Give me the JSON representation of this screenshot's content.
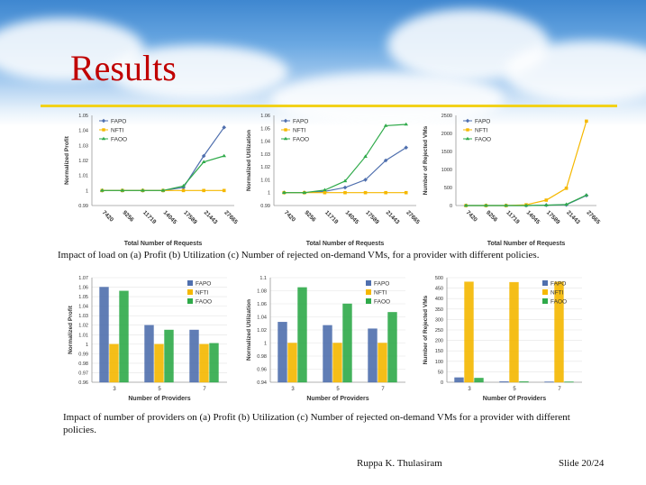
{
  "slide": {
    "title": "Results",
    "caption_top": "Impact of load on (a) Profit (b) Utilization (c) Number of rejected on-demand VMs, for a provider with different policies.",
    "caption_bottom": "Impact of number of providers on (a) Profit (b) Utilization (c) Number of rejected on-demand VMs for a provider with different policies.",
    "author": "Ruppa K. Thulasiram",
    "slide_number": "Slide 20/24",
    "colors": {
      "title": "#c00000",
      "accent": "#f2d21a",
      "fapo": "#4f6fae",
      "nfti": "#f5b800",
      "faoo": "#2faa4a"
    }
  },
  "chart_data": [
    {
      "type": "line",
      "xlabel": "Total Number of Requests",
      "ylabel": "Normalized Profit",
      "categories": [
        "7420",
        "9256",
        "11719",
        "14045",
        "17589",
        "21443",
        "27665"
      ],
      "yticks": [
        "0.99",
        "1",
        "1.01",
        "1.02",
        "1.03",
        "1.04",
        "1.05"
      ],
      "ylim": [
        0.99,
        1.05
      ],
      "legend": "top-left",
      "series": [
        {
          "name": "FAPO",
          "marker": "diamond",
          "values": [
            1,
            1,
            1,
            1,
            1.002,
            1.023,
            1.042
          ]
        },
        {
          "name": "NFTI",
          "marker": "square",
          "values": [
            1,
            1,
            1,
            1,
            1,
            1,
            1
          ]
        },
        {
          "name": "FAOO",
          "marker": "triangle",
          "values": [
            1,
            1,
            1,
            1,
            1.003,
            1.019,
            1.023
          ]
        }
      ]
    },
    {
      "type": "line",
      "xlabel": "Total Number of Requests",
      "ylabel": "Normalized Utilization",
      "categories": [
        "7420",
        "9256",
        "11719",
        "14045",
        "17589",
        "21443",
        "27665"
      ],
      "yticks": [
        "0.99",
        "1",
        "1.01",
        "1.02",
        "1.03",
        "1.04",
        "1.05",
        "1.06"
      ],
      "ylim": [
        0.99,
        1.06
      ],
      "legend": "top-left",
      "series": [
        {
          "name": "FAPO",
          "marker": "diamond",
          "values": [
            1,
            1,
            1.001,
            1.004,
            1.01,
            1.025,
            1.035
          ]
        },
        {
          "name": "NFTI",
          "marker": "square",
          "values": [
            1,
            1,
            1,
            1,
            1,
            1,
            1
          ]
        },
        {
          "name": "FAOO",
          "marker": "triangle",
          "values": [
            1,
            1,
            1.002,
            1.009,
            1.028,
            1.052,
            1.053
          ]
        }
      ]
    },
    {
      "type": "line",
      "xlabel": "Total Number of Requests",
      "ylabel": "Number of Rejected VMs",
      "categories": [
        "7420",
        "9256",
        "11719",
        "14045",
        "17589",
        "21443",
        "27665"
      ],
      "yticks": [
        "0",
        "500",
        "1000",
        "1500",
        "2000",
        "2500"
      ],
      "ylim": [
        0,
        2500
      ],
      "legend": "top-left",
      "series": [
        {
          "name": "FAPO",
          "marker": "diamond",
          "values": [
            0,
            0,
            0,
            0,
            10,
            20,
            280
          ]
        },
        {
          "name": "NFTI",
          "marker": "square",
          "values": [
            0,
            0,
            0,
            20,
            150,
            480,
            2340
          ]
        },
        {
          "name": "FAOO",
          "marker": "triangle",
          "values": [
            0,
            0,
            0,
            0,
            10,
            30,
            290
          ]
        }
      ]
    },
    {
      "type": "bar",
      "xlabel": "Number of Providers",
      "ylabel": "Normalized Profit",
      "categories": [
        "3",
        "5",
        "7"
      ],
      "yticks": [
        "0.96",
        "0.97",
        "0.98",
        "0.99",
        "1",
        "1.01",
        "1.02",
        "1.03",
        "1.04",
        "1.05",
        "1.06",
        "1.07"
      ],
      "ylim": [
        0.96,
        1.07
      ],
      "legend": "top-right",
      "series": [
        {
          "name": "FAPO",
          "values": [
            1.06,
            1.02,
            1.015
          ]
        },
        {
          "name": "NFTI",
          "values": [
            1,
            1,
            1
          ]
        },
        {
          "name": "FAOO",
          "values": [
            1.056,
            1.015,
            1.001
          ]
        }
      ]
    },
    {
      "type": "bar",
      "xlabel": "Number of Providers",
      "ylabel": "Normalized Utilization",
      "categories": [
        "3",
        "5",
        "7"
      ],
      "yticks": [
        "0.94",
        "0.96",
        "0.98",
        "1",
        "1.02",
        "1.04",
        "1.06",
        "1.08",
        "1.1"
      ],
      "ylim": [
        0.94,
        1.1
      ],
      "legend": "top-right",
      "series": [
        {
          "name": "FAPO",
          "values": [
            1.032,
            1.027,
            1.022
          ]
        },
        {
          "name": "NFTI",
          "values": [
            1,
            1,
            1
          ]
        },
        {
          "name": "FAOO",
          "values": [
            1.085,
            1.06,
            1.047
          ]
        }
      ]
    },
    {
      "type": "bar",
      "xlabel": "Number Of Providers",
      "ylabel": "Number of Rejected VMs",
      "categories": [
        "3",
        "5",
        "7"
      ],
      "yticks": [
        "0",
        "50",
        "100",
        "150",
        "200",
        "250",
        "300",
        "350",
        "400",
        "450",
        "500"
      ],
      "ylim": [
        0,
        500
      ],
      "legend": "top-right",
      "series": [
        {
          "name": "FAPO",
          "values": [
            22,
            3,
            2
          ]
        },
        {
          "name": "NFTI",
          "values": [
            480,
            478,
            480
          ]
        },
        {
          "name": "FAOO",
          "values": [
            20,
            3,
            2
          ]
        }
      ]
    }
  ]
}
